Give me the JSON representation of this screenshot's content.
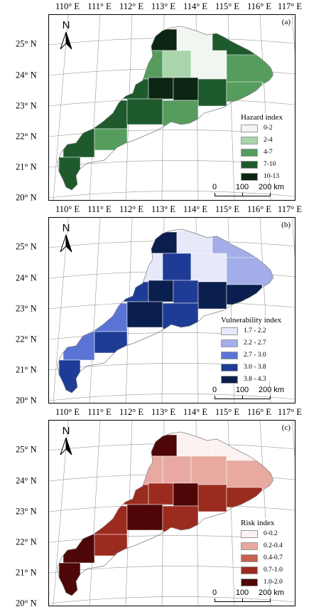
{
  "longitude_labels": [
    "110° E",
    "111° E",
    "112° E",
    "113° E",
    "114° E",
    "115° E",
    "116° E",
    "117° E"
  ],
  "latitude_labels": [
    "25° N",
    "24° N",
    "23° N",
    "22° N",
    "21° N",
    "20° N"
  ],
  "north_arrow": "N",
  "scale_bar": {
    "labels": [
      "0",
      "100",
      "200 km"
    ]
  },
  "panels": [
    {
      "id": "a",
      "letter": "(a)",
      "legend_title": "Hazard index",
      "classes": [
        {
          "label": "0-2",
          "color": "#f2f6f0"
        },
        {
          "label": "2-4",
          "color": "#a9d4ac"
        },
        {
          "label": "4-7",
          "color": "#559c5d"
        },
        {
          "label": "7-10",
          "color": "#1f5a2c"
        },
        {
          "label": "10-13",
          "color": "#0c2613"
        }
      ]
    },
    {
      "id": "b",
      "letter": "(b)",
      "legend_title": "Vulnerability index",
      "classes": [
        {
          "label": "1.7 - 2.2",
          "color": "#e8e8fb"
        },
        {
          "label": "2.2 - 2.7",
          "color": "#a3aee8"
        },
        {
          "label": "2.7 - 3.0",
          "color": "#5a74d6"
        },
        {
          "label": "3.0 - 3.8",
          "color": "#1e3c96"
        },
        {
          "label": "3.8 - 4.3",
          "color": "#0b1f4e"
        }
      ]
    },
    {
      "id": "c",
      "letter": "(c)",
      "legend_title": "Risk index",
      "classes": [
        {
          "label": "0-0.2",
          "color": "#fbf2f1"
        },
        {
          "label": "0.2-0.4",
          "color": "#e8aaa0"
        },
        {
          "label": "0.4-0.7",
          "color": "#c9604f"
        },
        {
          "label": "0.7-1.0",
          "color": "#9c2b1f"
        },
        {
          "label": "1.0-2.0",
          "color": "#4e0606"
        }
      ]
    }
  ]
}
